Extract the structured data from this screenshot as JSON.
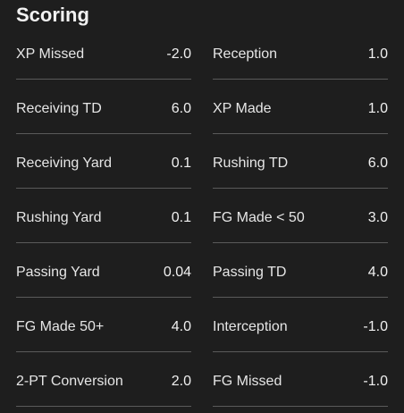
{
  "title": "Scoring",
  "rows": [
    [
      {
        "label": "XP Missed",
        "value": "-2.0"
      },
      {
        "label": "Reception",
        "value": "1.0"
      }
    ],
    [
      {
        "label": "Receiving TD",
        "value": "6.0"
      },
      {
        "label": "XP Made",
        "value": "1.0"
      }
    ],
    [
      {
        "label": "Receiving Yard",
        "value": "0.1"
      },
      {
        "label": "Rushing TD",
        "value": "6.0"
      }
    ],
    [
      {
        "label": "Rushing Yard",
        "value": "0.1"
      },
      {
        "label": "FG Made < 50",
        "value": "3.0"
      }
    ],
    [
      {
        "label": "Passing Yard",
        "value": "0.04"
      },
      {
        "label": "Passing TD",
        "value": "4.0"
      }
    ],
    [
      {
        "label": "FG Made 50+",
        "value": "4.0"
      },
      {
        "label": "Interception",
        "value": "-1.0"
      }
    ],
    [
      {
        "label": "2-PT Conversion",
        "value": "2.0"
      },
      {
        "label": "FG Missed",
        "value": "-1.0"
      }
    ]
  ]
}
